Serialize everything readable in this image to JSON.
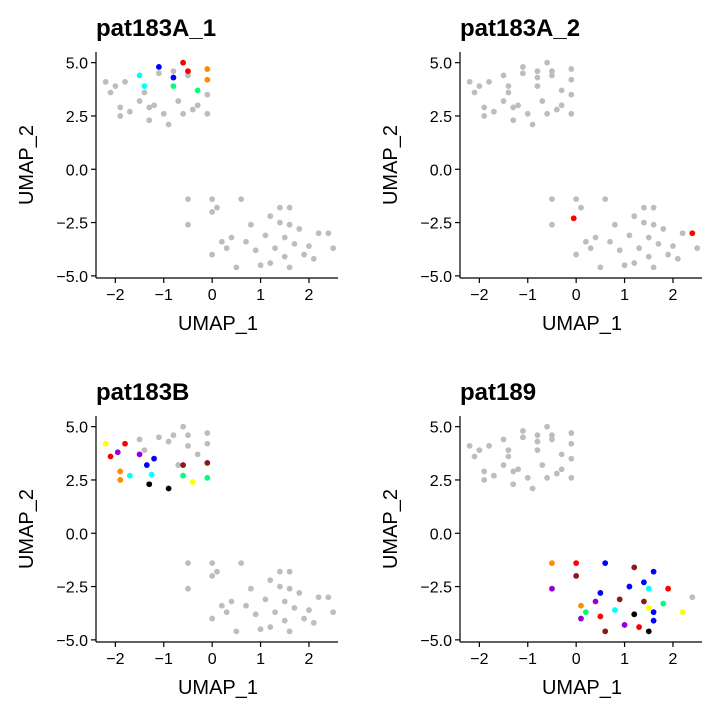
{
  "chart_data": [
    {
      "type": "scatter",
      "title": "pat183A_1",
      "xlabel": "UMAP_1",
      "ylabel": "UMAP_2",
      "xlim": [
        -2.4,
        2.6
      ],
      "ylim": [
        -5.1,
        5.5
      ],
      "xticks": [
        -2,
        -1,
        0,
        1,
        2
      ],
      "yticks": [
        5.0,
        2.5,
        0.0,
        -2.5,
        -5.0
      ],
      "xticklabels": [
        "−2",
        "−1",
        "0",
        "1",
        "2"
      ],
      "yticklabels": [
        "5.0",
        "2.5",
        "0.0",
        "−2.5",
        "−5.0"
      ],
      "background": [
        [
          -2.2,
          4.1
        ],
        [
          -2.1,
          3.6
        ],
        [
          -2.0,
          3.9
        ],
        [
          -1.9,
          2.5
        ],
        [
          -1.9,
          2.9
        ],
        [
          -1.8,
          4.1
        ],
        [
          -1.7,
          2.7
        ],
        [
          -1.5,
          3.2
        ],
        [
          -1.4,
          3.6
        ],
        [
          -1.3,
          2.9
        ],
        [
          -1.3,
          2.3
        ],
        [
          -1.2,
          3.0
        ],
        [
          -1.1,
          4.5
        ],
        [
          -1.0,
          2.6
        ],
        [
          -0.9,
          2.1
        ],
        [
          -0.8,
          4.6
        ],
        [
          -0.7,
          3.2
        ],
        [
          -0.6,
          2.6
        ],
        [
          -0.5,
          4.4
        ],
        [
          -0.4,
          2.8
        ],
        [
          -0.3,
          3.0
        ],
        [
          -0.1,
          2.6
        ],
        [
          -0.1,
          3.5
        ],
        [
          -0.5,
          -1.4
        ],
        [
          -0.5,
          -2.6
        ],
        [
          0.0,
          -1.4
        ],
        [
          0.0,
          -2.0
        ],
        [
          0.0,
          -4.0
        ],
        [
          0.1,
          -1.8
        ],
        [
          0.2,
          -3.4
        ],
        [
          0.3,
          -3.7
        ],
        [
          0.4,
          -3.2
        ],
        [
          0.5,
          -4.6
        ],
        [
          0.6,
          -1.4
        ],
        [
          0.7,
          -3.4
        ],
        [
          0.8,
          -2.6
        ],
        [
          0.9,
          -3.8
        ],
        [
          1.0,
          -4.5
        ],
        [
          1.1,
          -3.1
        ],
        [
          1.2,
          -4.4
        ],
        [
          1.2,
          -2.2
        ],
        [
          1.3,
          -3.7
        ],
        [
          1.4,
          -2.5
        ],
        [
          1.4,
          -1.8
        ],
        [
          1.5,
          -4.1
        ],
        [
          1.5,
          -3.2
        ],
        [
          1.6,
          -2.6
        ],
        [
          1.6,
          -1.8
        ],
        [
          1.6,
          -4.6
        ],
        [
          1.7,
          -3.5
        ],
        [
          1.8,
          -2.8
        ],
        [
          1.9,
          -4.0
        ],
        [
          2.0,
          -3.6
        ],
        [
          2.1,
          -4.2
        ],
        [
          2.2,
          -3.0
        ],
        [
          2.4,
          -3.0
        ],
        [
          2.5,
          -3.7
        ]
      ],
      "highlighted": [
        [
          -1.5,
          4.4,
          "#00FFFF"
        ],
        [
          -1.1,
          4.8,
          "#0000FF"
        ],
        [
          -0.8,
          4.3,
          "#0000FF"
        ],
        [
          -1.4,
          3.9,
          "#00FFFF"
        ],
        [
          -0.8,
          3.9,
          "#00FF7F"
        ],
        [
          -0.6,
          5.0,
          "#FF0000"
        ],
        [
          -0.5,
          4.6,
          "#FF0000"
        ],
        [
          -0.3,
          3.7,
          "#00FF7F"
        ],
        [
          -0.1,
          4.7,
          "#FF8C00"
        ],
        [
          -0.1,
          4.2,
          "#FF8C00"
        ]
      ]
    },
    {
      "type": "scatter",
      "title": "pat183A_2",
      "xlabel": "UMAP_1",
      "ylabel": "UMAP_2",
      "xlim": [
        -2.4,
        2.6
      ],
      "ylim": [
        -5.1,
        5.5
      ],
      "xticks": [
        -2,
        -1,
        0,
        1,
        2
      ],
      "yticks": [
        5.0,
        2.5,
        0.0,
        -2.5,
        -5.0
      ],
      "xticklabels": [
        "−2",
        "−1",
        "0",
        "1",
        "2"
      ],
      "yticklabels": [
        "5.0",
        "2.5",
        "0.0",
        "−2.5",
        "−5.0"
      ],
      "background": [
        [
          -2.2,
          4.1
        ],
        [
          -2.1,
          3.6
        ],
        [
          -2.0,
          3.9
        ],
        [
          -1.9,
          2.5
        ],
        [
          -1.9,
          2.9
        ],
        [
          -1.8,
          4.1
        ],
        [
          -1.7,
          2.7
        ],
        [
          -1.5,
          3.2
        ],
        [
          -1.4,
          3.6
        ],
        [
          -1.3,
          2.9
        ],
        [
          -1.3,
          2.3
        ],
        [
          -1.2,
          3.0
        ],
        [
          -1.1,
          4.5
        ],
        [
          -1.0,
          2.6
        ],
        [
          -0.9,
          2.1
        ],
        [
          -0.8,
          4.6
        ],
        [
          -0.7,
          3.2
        ],
        [
          -0.6,
          2.6
        ],
        [
          -0.5,
          4.4
        ],
        [
          -0.4,
          2.8
        ],
        [
          -0.3,
          3.0
        ],
        [
          -0.1,
          2.6
        ],
        [
          -0.1,
          3.5
        ],
        [
          -1.5,
          4.4
        ],
        [
          -1.1,
          4.8
        ],
        [
          -0.8,
          4.3
        ],
        [
          -1.4,
          3.9
        ],
        [
          -0.8,
          3.9
        ],
        [
          -0.6,
          5.0
        ],
        [
          -0.5,
          4.6
        ],
        [
          -0.3,
          3.7
        ],
        [
          -0.1,
          4.7
        ],
        [
          -0.1,
          4.2
        ],
        [
          -0.5,
          -1.4
        ],
        [
          -0.5,
          -2.6
        ],
        [
          0.0,
          -1.4
        ],
        [
          0.0,
          -4.0
        ],
        [
          0.1,
          -1.8
        ],
        [
          0.2,
          -3.4
        ],
        [
          0.3,
          -3.7
        ],
        [
          0.4,
          -3.2
        ],
        [
          0.5,
          -4.6
        ],
        [
          0.6,
          -1.4
        ],
        [
          0.7,
          -3.4
        ],
        [
          0.8,
          -2.6
        ],
        [
          0.9,
          -3.8
        ],
        [
          1.0,
          -4.5
        ],
        [
          1.1,
          -3.1
        ],
        [
          1.2,
          -4.4
        ],
        [
          1.2,
          -2.2
        ],
        [
          1.3,
          -3.7
        ],
        [
          1.4,
          -2.5
        ],
        [
          1.4,
          -1.8
        ],
        [
          1.5,
          -4.1
        ],
        [
          1.5,
          -3.2
        ],
        [
          1.6,
          -2.6
        ],
        [
          1.6,
          -1.8
        ],
        [
          1.6,
          -4.6
        ],
        [
          1.7,
          -3.5
        ],
        [
          1.8,
          -2.8
        ],
        [
          1.9,
          -4.0
        ],
        [
          2.0,
          -3.6
        ],
        [
          2.1,
          -4.2
        ],
        [
          2.2,
          -3.0
        ],
        [
          2.5,
          -3.7
        ]
      ],
      "highlighted": [
        [
          -0.05,
          -2.3,
          "#FF0000"
        ],
        [
          2.4,
          -3.0,
          "#FF0000"
        ]
      ]
    },
    {
      "type": "scatter",
      "title": "pat183B",
      "xlabel": "UMAP_1",
      "ylabel": "UMAP_2",
      "xlim": [
        -2.4,
        2.6
      ],
      "ylim": [
        -5.1,
        5.5
      ],
      "xticks": [
        -2,
        -1,
        0,
        1,
        2
      ],
      "yticks": [
        5.0,
        2.5,
        0.0,
        -2.5,
        -5.0
      ],
      "xticklabels": [
        "−2",
        "−1",
        "0",
        "1",
        "2"
      ],
      "yticklabels": [
        "5.0",
        "2.5",
        "0.0",
        "−2.5",
        "−5.0"
      ],
      "background": [
        [
          -1.5,
          4.4
        ],
        [
          -1.4,
          3.9
        ],
        [
          -1.1,
          4.5
        ],
        [
          -0.9,
          4.3
        ],
        [
          -0.8,
          4.6
        ],
        [
          -0.6,
          5.0
        ],
        [
          -0.5,
          4.6
        ],
        [
          -0.5,
          4.1
        ],
        [
          -0.3,
          3.7
        ],
        [
          -0.1,
          4.7
        ],
        [
          -0.1,
          4.2
        ],
        [
          -0.7,
          3.2
        ],
        [
          -0.5,
          -1.4
        ],
        [
          -0.5,
          -2.6
        ],
        [
          0.0,
          -1.4
        ],
        [
          0.0,
          -2.0
        ],
        [
          0.0,
          -4.0
        ],
        [
          0.1,
          -1.8
        ],
        [
          0.2,
          -3.4
        ],
        [
          0.3,
          -3.7
        ],
        [
          0.4,
          -3.2
        ],
        [
          0.5,
          -4.6
        ],
        [
          0.6,
          -1.4
        ],
        [
          0.7,
          -3.4
        ],
        [
          0.8,
          -2.6
        ],
        [
          0.9,
          -3.8
        ],
        [
          1.0,
          -4.5
        ],
        [
          1.1,
          -3.1
        ],
        [
          1.2,
          -4.4
        ],
        [
          1.2,
          -2.2
        ],
        [
          1.3,
          -3.7
        ],
        [
          1.4,
          -2.5
        ],
        [
          1.4,
          -1.8
        ],
        [
          1.5,
          -4.1
        ],
        [
          1.5,
          -3.2
        ],
        [
          1.6,
          -2.6
        ],
        [
          1.6,
          -1.8
        ],
        [
          1.6,
          -4.6
        ],
        [
          1.7,
          -3.5
        ],
        [
          1.8,
          -2.8
        ],
        [
          1.9,
          -4.0
        ],
        [
          2.0,
          -3.6
        ],
        [
          2.1,
          -4.2
        ],
        [
          2.2,
          -3.0
        ],
        [
          2.4,
          -3.0
        ],
        [
          2.5,
          -3.7
        ]
      ],
      "highlighted": [
        [
          -2.2,
          4.2,
          "#FFFF00"
        ],
        [
          -2.1,
          3.6,
          "#FF0000"
        ],
        [
          -1.95,
          3.8,
          "#9400D3"
        ],
        [
          -1.8,
          4.2,
          "#FF0000"
        ],
        [
          -1.5,
          3.7,
          "#9400D3"
        ],
        [
          -1.9,
          2.9,
          "#FF8C00"
        ],
        [
          -1.9,
          2.5,
          "#FF8C00"
        ],
        [
          -1.7,
          2.7,
          "#00FFFF"
        ],
        [
          -1.35,
          3.2,
          "#0000FF"
        ],
        [
          -1.2,
          3.5,
          "#0000FF"
        ],
        [
          -1.25,
          2.75,
          "#00FFFF"
        ],
        [
          -1.3,
          2.3,
          "#000000"
        ],
        [
          -0.9,
          2.1,
          "#000000"
        ],
        [
          -0.6,
          3.2,
          "#8B1A1A"
        ],
        [
          -0.6,
          2.7,
          "#00FF7F"
        ],
        [
          -0.4,
          2.4,
          "#FFFF00"
        ],
        [
          -0.1,
          3.3,
          "#8B1A1A"
        ],
        [
          -0.1,
          2.6,
          "#00FF7F"
        ]
      ]
    },
    {
      "type": "scatter",
      "title": "pat189",
      "xlabel": "UMAP_1",
      "ylabel": "UMAP_2",
      "xlim": [
        -2.4,
        2.6
      ],
      "ylim": [
        -5.1,
        5.5
      ],
      "xticks": [
        -2,
        -1,
        0,
        1,
        2
      ],
      "yticks": [
        5.0,
        2.5,
        0.0,
        -2.5,
        -5.0
      ],
      "xticklabels": [
        "−2",
        "−1",
        "0",
        "1",
        "2"
      ],
      "yticklabels": [
        "5.0",
        "2.5",
        "0.0",
        "−2.5",
        "−5.0"
      ],
      "background": [
        [
          -2.2,
          4.1
        ],
        [
          -2.1,
          3.6
        ],
        [
          -2.0,
          3.9
        ],
        [
          -1.9,
          2.5
        ],
        [
          -1.9,
          2.9
        ],
        [
          -1.8,
          4.1
        ],
        [
          -1.7,
          2.7
        ],
        [
          -1.5,
          3.2
        ],
        [
          -1.4,
          3.6
        ],
        [
          -1.3,
          2.9
        ],
        [
          -1.3,
          2.3
        ],
        [
          -1.2,
          3.0
        ],
        [
          -1.1,
          4.5
        ],
        [
          -1.0,
          2.6
        ],
        [
          -0.9,
          2.1
        ],
        [
          -0.8,
          4.6
        ],
        [
          -0.7,
          3.2
        ],
        [
          -0.6,
          2.6
        ],
        [
          -0.5,
          4.4
        ],
        [
          -0.4,
          2.8
        ],
        [
          -0.3,
          3.0
        ],
        [
          -0.1,
          2.6
        ],
        [
          -0.1,
          3.5
        ],
        [
          -1.5,
          4.4
        ],
        [
          -1.1,
          4.8
        ],
        [
          -0.8,
          4.3
        ],
        [
          -1.4,
          3.9
        ],
        [
          -0.8,
          3.9
        ],
        [
          -0.6,
          5.0
        ],
        [
          -0.5,
          4.6
        ],
        [
          -0.3,
          3.7
        ],
        [
          -0.1,
          4.7
        ],
        [
          -0.1,
          4.2
        ]
      ],
      "highlighted": [
        [
          -0.5,
          -1.4,
          "#FF8C00"
        ],
        [
          -0.5,
          -2.6,
          "#9400D3"
        ],
        [
          0.0,
          -1.4,
          "#FF0000"
        ],
        [
          0.0,
          -2.0,
          "#8B1A1A"
        ],
        [
          0.1,
          -3.4,
          "#FF8C00"
        ],
        [
          0.2,
          -3.7,
          "#00FF7F"
        ],
        [
          0.1,
          -4.0,
          "#9400D3"
        ],
        [
          0.4,
          -3.2,
          "#9400D3"
        ],
        [
          0.5,
          -2.8,
          "#0000FF"
        ],
        [
          0.5,
          -3.9,
          "#FF0000"
        ],
        [
          0.6,
          -4.6,
          "#8B1A1A"
        ],
        [
          0.6,
          -1.4,
          "#0000FF"
        ],
        [
          0.8,
          -3.6,
          "#00FFFF"
        ],
        [
          0.9,
          -3.1,
          "#8B1A1A"
        ],
        [
          1.0,
          -4.3,
          "#9400D3"
        ],
        [
          1.1,
          -2.5,
          "#0000FF"
        ],
        [
          1.2,
          -1.6,
          "#8B1A1A"
        ],
        [
          1.2,
          -3.8,
          "#000000"
        ],
        [
          1.3,
          -4.4,
          "#FF0000"
        ],
        [
          1.4,
          -2.3,
          "#0000FF"
        ],
        [
          1.4,
          -3.2,
          "#8B1A1A"
        ],
        [
          1.5,
          -2.6,
          "#00FFFF"
        ],
        [
          1.5,
          -3.5,
          "#FFFF00"
        ],
        [
          1.6,
          -4.1,
          "#0000FF"
        ],
        [
          1.6,
          -1.8,
          "#0000FF"
        ],
        [
          1.5,
          -4.6,
          "#000000"
        ],
        [
          1.6,
          -3.7,
          "#0000FF"
        ],
        [
          1.8,
          -3.3,
          "#00FF7F"
        ],
        [
          1.9,
          -2.6,
          "#FF0000"
        ],
        [
          2.2,
          -3.7,
          "#FFFF00"
        ],
        [
          2.4,
          -3.0,
          "#BDBDBD"
        ]
      ]
    }
  ],
  "colors": {
    "background_points": "#BDBDBD",
    "axis": "#000000"
  }
}
